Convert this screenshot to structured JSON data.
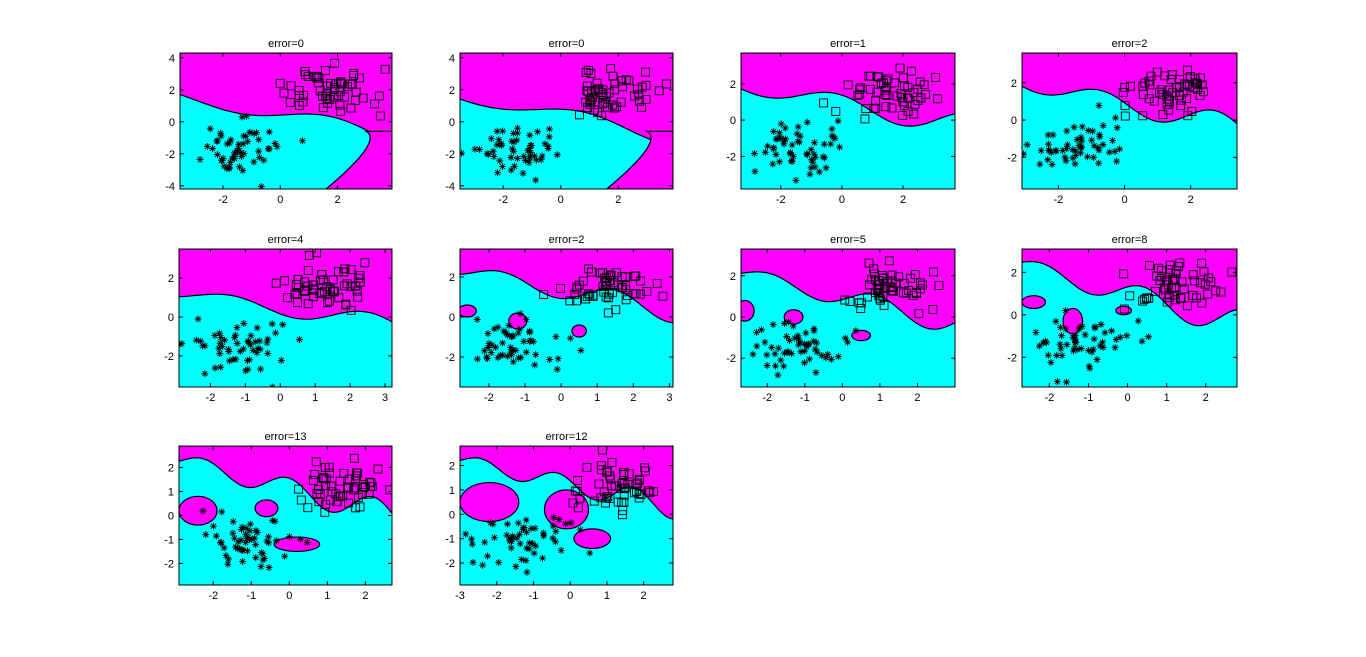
{
  "colors": {
    "magenta_region": "#ff00ff",
    "cyan_region": "#00ffff",
    "marker": "#000000",
    "background": "#ffffff"
  },
  "chart_data": [
    {
      "type": "scatter",
      "title": "error=0",
      "xlim": [
        -3.5,
        3.9
      ],
      "ylim": [
        -4.2,
        4.3
      ],
      "xticks": [
        "-2",
        "0",
        "2"
      ],
      "yticks": [
        "4",
        "2",
        "0",
        "-2",
        "-4"
      ],
      "series": [
        {
          "marker": "square",
          "class": "magenta"
        },
        {
          "marker": "star",
          "class": "cyan"
        }
      ]
    },
    {
      "type": "scatter",
      "title": "error=0",
      "xlim": [
        -3.5,
        3.9
      ],
      "ylim": [
        -4.2,
        4.3
      ],
      "xticks": [
        "-2",
        "0",
        "2"
      ],
      "yticks": [
        "4",
        "2",
        "0",
        "-2",
        "-4"
      ],
      "series": [
        {
          "marker": "square",
          "class": "magenta"
        },
        {
          "marker": "star",
          "class": "cyan"
        }
      ]
    },
    {
      "type": "scatter",
      "title": "error=1",
      "xlim": [
        -3.3,
        3.7
      ],
      "ylim": [
        -3.8,
        3.7
      ],
      "xticks": [
        "-2",
        "0",
        "2"
      ],
      "yticks": [
        "2",
        "0",
        "-2"
      ],
      "series": [
        {
          "marker": "square",
          "class": "magenta"
        },
        {
          "marker": "star",
          "class": "cyan"
        }
      ]
    },
    {
      "type": "scatter",
      "title": "error=2",
      "xlim": [
        -3.1,
        3.4
      ],
      "ylim": [
        -3.7,
        3.6
      ],
      "xticks": [
        "-2",
        "0",
        "2"
      ],
      "yticks": [
        "2",
        "0",
        "-2"
      ],
      "series": [
        {
          "marker": "square",
          "class": "magenta"
        },
        {
          "marker": "star",
          "class": "cyan"
        }
      ]
    },
    {
      "type": "scatter",
      "title": "error=4",
      "xlim": [
        -2.9,
        3.2
      ],
      "ylim": [
        -3.6,
        3.5
      ],
      "xticks": [
        "-2",
        "-1",
        "0",
        "1",
        "2",
        "3"
      ],
      "yticks": [
        "2",
        "0",
        "-2"
      ],
      "series": [
        {
          "marker": "square",
          "class": "magenta"
        },
        {
          "marker": "star",
          "class": "cyan"
        }
      ]
    },
    {
      "type": "scatter",
      "title": "error=2",
      "xlim": [
        -2.8,
        3.1
      ],
      "ylim": [
        -3.5,
        3.4
      ],
      "xticks": [
        "-2",
        "-1",
        "0",
        "1",
        "2",
        "3"
      ],
      "yticks": [
        "2",
        "0",
        "-2"
      ],
      "series": [
        {
          "marker": "square",
          "class": "magenta"
        },
        {
          "marker": "star",
          "class": "cyan"
        }
      ]
    },
    {
      "type": "scatter",
      "title": "error=5",
      "xlim": [
        -2.7,
        3.0
      ],
      "ylim": [
        -3.4,
        3.3
      ],
      "xticks": [
        "-2",
        "-1",
        "0",
        "1",
        "2"
      ],
      "yticks": [
        "2",
        "0",
        "-2"
      ],
      "series": [
        {
          "marker": "square",
          "class": "magenta"
        },
        {
          "marker": "star",
          "class": "cyan"
        }
      ]
    },
    {
      "type": "scatter",
      "title": "error=8",
      "xlim": [
        -2.7,
        2.8
      ],
      "ylim": [
        -3.4,
        3.1
      ],
      "xticks": [
        "-2",
        "-1",
        "0",
        "1",
        "2"
      ],
      "yticks": [
        "2",
        "0",
        "-2"
      ],
      "series": [
        {
          "marker": "square",
          "class": "magenta"
        },
        {
          "marker": "star",
          "class": "cyan"
        }
      ]
    },
    {
      "type": "scatter",
      "title": "error=13",
      "xlim": [
        -2.9,
        2.7
      ],
      "ylim": [
        -2.9,
        2.9
      ],
      "xticks": [
        "-2",
        "-1",
        "0",
        "1",
        "2"
      ],
      "yticks": [
        "2",
        "1",
        "0",
        "-1",
        "-2"
      ],
      "series": [
        {
          "marker": "square",
          "class": "magenta"
        },
        {
          "marker": "star",
          "class": "cyan"
        }
      ]
    },
    {
      "type": "scatter",
      "title": "error=12",
      "xlim": [
        -3.0,
        2.8
      ],
      "ylim": [
        -2.9,
        2.8
      ],
      "xticks": [
        "-3",
        "-2",
        "-1",
        "0",
        "1",
        "2"
      ],
      "yticks": [
        "2",
        "1",
        "0",
        "-1",
        "-2"
      ],
      "series": [
        {
          "marker": "square",
          "class": "magenta"
        },
        {
          "marker": "star",
          "class": "cyan"
        }
      ]
    }
  ]
}
